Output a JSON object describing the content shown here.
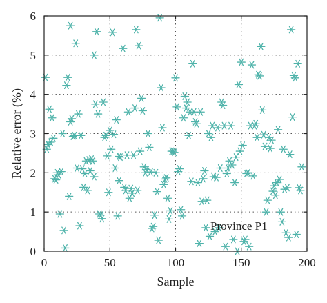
{
  "chart_data": {
    "type": "scatter",
    "title": "",
    "xlabel": "Sample",
    "ylabel": "Relative error (%)",
    "xlim": [
      0,
      200
    ],
    "ylim": [
      0,
      6
    ],
    "xticks": [
      0,
      50,
      100,
      150,
      200
    ],
    "yticks": [
      0,
      1,
      2,
      3,
      4,
      5,
      6
    ],
    "grid": "dotted",
    "marker": "asterisk",
    "annotation": "Province P1",
    "color": "#4fb3aa",
    "points": [
      [
        1,
        4.43
      ],
      [
        2,
        2.6
      ],
      [
        3,
        2.72
      ],
      [
        4,
        3.62
      ],
      [
        5,
        2.78
      ],
      [
        6,
        3.4
      ],
      [
        7,
        2.88
      ],
      [
        8,
        1.85
      ],
      [
        9,
        1.82
      ],
      [
        10,
        2.0
      ],
      [
        11,
        1.95
      ],
      [
        12,
        0.95
      ],
      [
        13,
        2.03
      ],
      [
        14,
        3.0
      ],
      [
        15,
        0.53
      ],
      [
        16,
        0.08
      ],
      [
        17,
        4.23
      ],
      [
        18,
        4.43
      ],
      [
        19,
        1.4
      ],
      [
        20,
        3.3
      ],
      [
        20,
        5.75
      ],
      [
        21,
        3.38
      ],
      [
        22,
        2.93
      ],
      [
        23,
        2.95
      ],
      [
        24,
        5.3
      ],
      [
        25,
        2.12
      ],
      [
        26,
        3.5
      ],
      [
        27,
        0.65
      ],
      [
        28,
        2.95
      ],
      [
        29,
        2.1
      ],
      [
        30,
        1.63
      ],
      [
        31,
        1.98
      ],
      [
        32,
        2.3
      ],
      [
        33,
        1.55
      ],
      [
        34,
        2.33
      ],
      [
        35,
        2.05
      ],
      [
        36,
        2.35
      ],
      [
        37,
        2.3
      ],
      [
        38,
        5.0
      ],
      [
        38,
        1.9
      ],
      [
        39,
        3.75
      ],
      [
        40,
        5.6
      ],
      [
        41,
        3.5
      ],
      [
        42,
        0.95
      ],
      [
        43,
        0.92
      ],
      [
        44,
        0.83
      ],
      [
        45,
        3.8
      ],
      [
        46,
        2.9
      ],
      [
        47,
        2.95
      ],
      [
        48,
        2.43
      ],
      [
        49,
        1.5
      ],
      [
        50,
        3.08
      ],
      [
        51,
        2.6
      ],
      [
        52,
        5.58
      ],
      [
        53,
        2.98
      ],
      [
        54,
        2.12
      ],
      [
        55,
        3.35
      ],
      [
        56,
        0.9
      ],
      [
        57,
        1.8
      ],
      [
        57,
        2.42
      ],
      [
        58,
        2.4
      ],
      [
        60,
        5.17
      ],
      [
        61,
        1.63
      ],
      [
        62,
        1.55
      ],
      [
        63,
        2.45
      ],
      [
        64,
        3.55
      ],
      [
        65,
        1.35
      ],
      [
        66,
        1.6
      ],
      [
        67,
        1.48
      ],
      [
        68,
        2.45
      ],
      [
        69,
        3.65
      ],
      [
        70,
        5.65
      ],
      [
        71,
        1.55
      ],
      [
        72,
        5.24
      ],
      [
        73,
        2.55
      ],
      [
        74,
        3.9
      ],
      [
        75,
        3.58
      ],
      [
        76,
        2.15
      ],
      [
        77,
        2.0
      ],
      [
        78,
        2.08
      ],
      [
        79,
        3.0
      ],
      [
        80,
        2.65
      ],
      [
        81,
        2.02
      ],
      [
        82,
        0.58
      ],
      [
        83,
        0.63
      ],
      [
        84,
        0.92
      ],
      [
        85,
        2.0
      ],
      [
        86,
        1.52
      ],
      [
        87,
        0.28
      ],
      [
        88,
        5.95
      ],
      [
        89,
        4.17
      ],
      [
        90,
        3.15
      ],
      [
        91,
        1.7
      ],
      [
        92,
        1.84
      ],
      [
        93,
        1.87
      ],
      [
        94,
        1.35
      ],
      [
        95,
        0.82
      ],
      [
        96,
        1.03
      ],
      [
        97,
        2.55
      ],
      [
        98,
        2.55
      ],
      [
        99,
        2.52
      ],
      [
        100,
        4.42
      ],
      [
        101,
        3.68
      ],
      [
        102,
        2.03
      ],
      [
        103,
        2.1
      ],
      [
        104,
        1.06
      ],
      [
        105,
        0.9
      ],
      [
        106,
        3.4
      ],
      [
        107,
        3.95
      ],
      [
        108,
        3.65
      ],
      [
        109,
        3.8
      ],
      [
        110,
        2.95
      ],
      [
        111,
        3.55
      ],
      [
        112,
        1.78
      ],
      [
        113,
        4.78
      ],
      [
        114,
        3.55
      ],
      [
        115,
        3.3
      ],
      [
        116,
        3.25
      ],
      [
        117,
        1.75
      ],
      [
        118,
        0.2
      ],
      [
        119,
        3.55
      ],
      [
        120,
        1.27
      ],
      [
        121,
        1.85
      ],
      [
        122,
        2.05
      ],
      [
        123,
        0.6
      ],
      [
        124,
        1.3
      ],
      [
        125,
        3.0
      ],
      [
        126,
        0.38
      ],
      [
        127,
        2.9
      ],
      [
        128,
        3.2
      ],
      [
        129,
        1.9
      ],
      [
        130,
        0.5
      ],
      [
        131,
        1.88
      ],
      [
        132,
        3.15
      ],
      [
        133,
        0.6
      ],
      [
        134,
        2.12
      ],
      [
        135,
        3.8
      ],
      [
        136,
        3.72
      ],
      [
        137,
        3.2
      ],
      [
        138,
        0.12
      ],
      [
        139,
        1.98
      ],
      [
        140,
        2.12
      ],
      [
        141,
        2.3
      ],
      [
        142,
        3.2
      ],
      [
        143,
        2.2
      ],
      [
        144,
        0.3
      ],
      [
        145,
        1.75
      ],
      [
        146,
        2.4
      ],
      [
        147,
        0.0
      ],
      [
        148,
        4.25
      ],
      [
        149,
        2.55
      ],
      [
        150,
        4.82
      ],
      [
        151,
        2.7
      ],
      [
        152,
        0.25
      ],
      [
        153,
        0.3
      ],
      [
        154,
        1.98
      ],
      [
        155,
        2.0
      ],
      [
        156,
        0.12
      ],
      [
        157,
        3.2
      ],
      [
        158,
        4.75
      ],
      [
        159,
        1.92
      ],
      [
        160,
        3.2
      ],
      [
        161,
        3.25
      ],
      [
        162,
        2.9
      ],
      [
        163,
        4.5
      ],
      [
        164,
        4.47
      ],
      [
        165,
        5.22
      ],
      [
        166,
        3.6
      ],
      [
        167,
        2.97
      ],
      [
        168,
        2.67
      ],
      [
        169,
        1.0
      ],
      [
        170,
        1.3
      ],
      [
        171,
        2.9
      ],
      [
        172,
        2.62
      ],
      [
        173,
        2.83
      ],
      [
        174,
        1.53
      ],
      [
        175,
        1.67
      ],
      [
        176,
        1.43
      ],
      [
        177,
        1.75
      ],
      [
        178,
        3.1
      ],
      [
        179,
        1.83
      ],
      [
        180,
        1.0
      ],
      [
        181,
        0.75
      ],
      [
        182,
        2.6
      ],
      [
        183,
        1.58
      ],
      [
        184,
        0.47
      ],
      [
        185,
        1.62
      ],
      [
        186,
        0.35
      ],
      [
        187,
        2.47
      ],
      [
        188,
        5.65
      ],
      [
        189,
        3.42
      ],
      [
        190,
        4.48
      ],
      [
        191,
        4.42
      ],
      [
        192,
        0.43
      ],
      [
        193,
        4.78
      ],
      [
        194,
        1.62
      ],
      [
        195,
        1.55
      ],
      [
        196,
        2.15
      ]
    ]
  }
}
